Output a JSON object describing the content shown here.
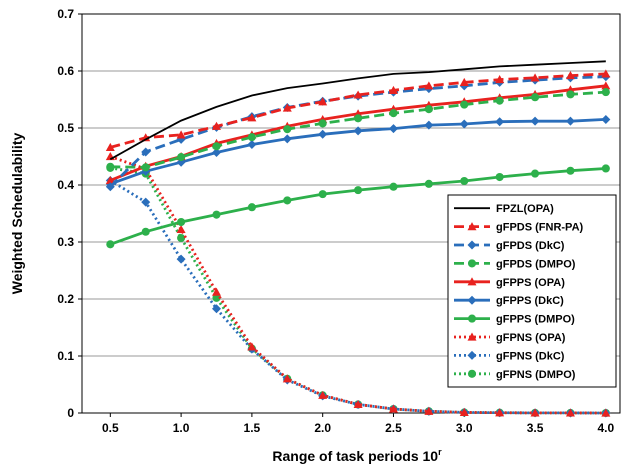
{
  "chart_data": {
    "type": "line",
    "title": "",
    "xlabel": "Range of task periods 10",
    "xlabel_sup": "r",
    "ylabel": "Weighted Schedulability",
    "xlim": [
      0.3,
      4.1
    ],
    "ylim": [
      0,
      0.7
    ],
    "x_ticks": [
      "0.5",
      "1.0",
      "1.5",
      "2.0",
      "2.5",
      "3.0",
      "3.5",
      "4.0"
    ],
    "y_ticks": [
      "0",
      "0.1",
      "0.2",
      "0.3",
      "0.4",
      "0.5",
      "0.6",
      "0.7"
    ],
    "grid": "horizontal",
    "legend_position": "right-center",
    "x": [
      0.5,
      0.75,
      1.0,
      1.25,
      1.5,
      1.75,
      2.0,
      2.25,
      2.5,
      2.75,
      3.0,
      3.25,
      3.5,
      3.75,
      4.0
    ],
    "series": [
      {
        "name": "FPZL(OPA)",
        "color": "#000000",
        "dash": "solid",
        "marker": "none",
        "values": [
          0.445,
          0.48,
          0.513,
          0.537,
          0.557,
          0.57,
          0.578,
          0.587,
          0.595,
          0.598,
          0.603,
          0.608,
          0.611,
          0.614,
          0.617
        ]
      },
      {
        "name": "gFPDS (FNR-PA)",
        "color": "#e8221f",
        "dash": "dashed",
        "marker": "triangle",
        "values": [
          0.466,
          0.483,
          0.488,
          0.503,
          0.518,
          0.535,
          0.546,
          0.558,
          0.566,
          0.574,
          0.58,
          0.585,
          0.588,
          0.592,
          0.595
        ]
      },
      {
        "name": "gFPDS (DkC)",
        "color": "#2a6ebb",
        "dash": "dashed",
        "marker": "diamond",
        "values": [
          0.397,
          0.458,
          0.48,
          0.501,
          0.52,
          0.536,
          0.547,
          0.556,
          0.563,
          0.569,
          0.574,
          0.58,
          0.584,
          0.588,
          0.59
        ]
      },
      {
        "name": "gFPDS (DMPO)",
        "color": "#2db04b",
        "dash": "dashed",
        "marker": "circle",
        "values": [
          0.432,
          0.431,
          0.449,
          0.468,
          0.484,
          0.498,
          0.508,
          0.517,
          0.526,
          0.533,
          0.541,
          0.548,
          0.554,
          0.559,
          0.563
        ]
      },
      {
        "name": "gFPPS (OPA)",
        "color": "#e8221f",
        "dash": "solid",
        "marker": "triangle",
        "values": [
          0.408,
          0.433,
          0.45,
          0.473,
          0.488,
          0.503,
          0.515,
          0.525,
          0.533,
          0.54,
          0.546,
          0.553,
          0.559,
          0.567,
          0.574
        ]
      },
      {
        "name": "gFPPS (DkC)",
        "color": "#2a6ebb",
        "dash": "solid",
        "marker": "diamond",
        "values": [
          0.402,
          0.424,
          0.44,
          0.457,
          0.471,
          0.481,
          0.489,
          0.495,
          0.499,
          0.505,
          0.507,
          0.511,
          0.512,
          0.512,
          0.515
        ]
      },
      {
        "name": "gFPPS (DMPO)",
        "color": "#2db04b",
        "dash": "solid",
        "marker": "circle",
        "values": [
          0.296,
          0.318,
          0.335,
          0.348,
          0.361,
          0.373,
          0.384,
          0.391,
          0.397,
          0.402,
          0.407,
          0.414,
          0.42,
          0.425,
          0.429
        ]
      },
      {
        "name": "gFPNS (OPA)",
        "color": "#e8221f",
        "dash": "dotted",
        "marker": "triangle",
        "values": [
          0.45,
          0.428,
          0.322,
          0.212,
          0.116,
          0.06,
          0.031,
          0.015,
          0.007,
          0.003,
          0.001,
          0.0005,
          0.0002,
          0.0001,
          0.0
        ]
      },
      {
        "name": "gFPNS (DkC)",
        "color": "#2a6ebb",
        "dash": "dotted",
        "marker": "diamond",
        "values": [
          0.408,
          0.37,
          0.27,
          0.183,
          0.112,
          0.058,
          0.03,
          0.015,
          0.007,
          0.003,
          0.001,
          0.0005,
          0.0002,
          0.0001,
          0.0
        ]
      },
      {
        "name": "gFPNS (DMPO)",
        "color": "#2db04b",
        "dash": "dotted",
        "marker": "circle",
        "values": [
          0.43,
          0.42,
          0.307,
          0.202,
          0.113,
          0.06,
          0.031,
          0.015,
          0.007,
          0.003,
          0.001,
          0.0005,
          0.0002,
          0.0001,
          0.0
        ]
      }
    ]
  }
}
